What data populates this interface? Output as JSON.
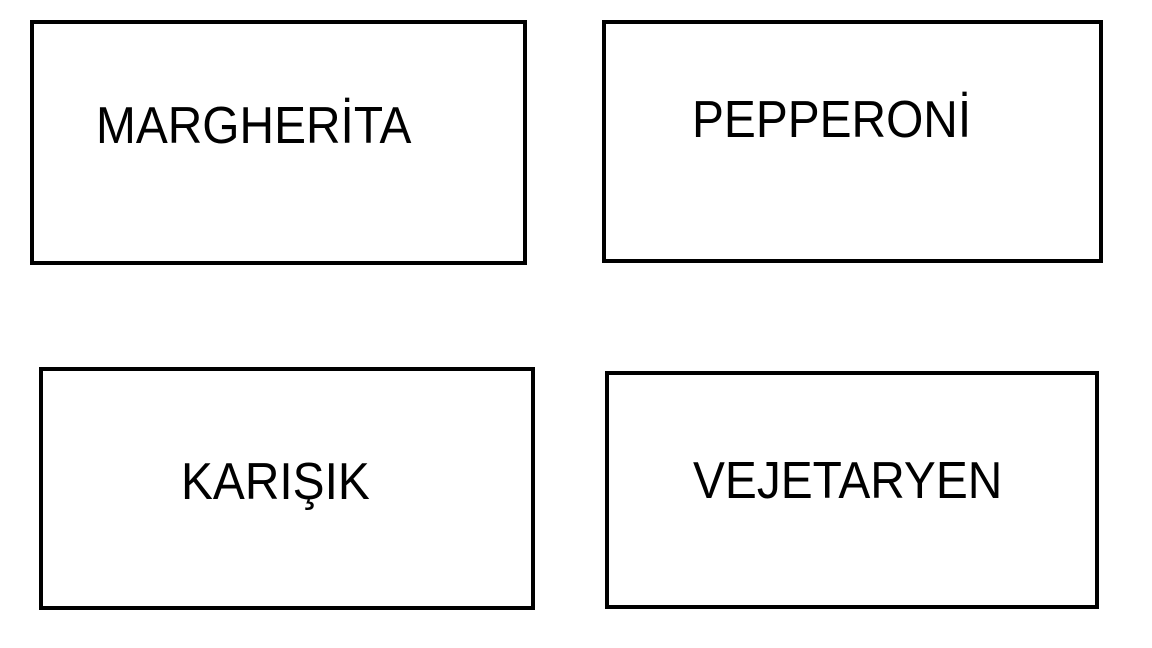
{
  "cards": [
    {
      "label": "MARGHERİTA"
    },
    {
      "label": "PEPPERONİ"
    },
    {
      "label": "KARIŞIK"
    },
    {
      "label": "VEJETARYEN"
    }
  ],
  "colors": {
    "border": "#000000",
    "text": "#000000",
    "background": "#ffffff"
  }
}
